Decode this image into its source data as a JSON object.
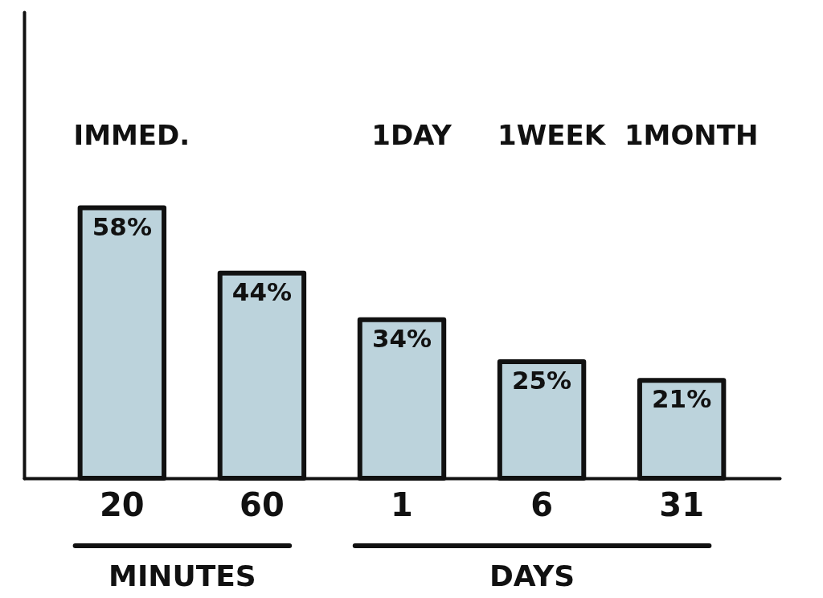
{
  "chart_data": {
    "type": "bar",
    "categories": [
      "20",
      "60",
      "1",
      "6",
      "31"
    ],
    "values": [
      58,
      44,
      34,
      25,
      21
    ],
    "value_labels": [
      "58%",
      "44%",
      "34%",
      "25%",
      "21%"
    ],
    "color": "#bcd3dc",
    "ylim": [
      0,
      100
    ],
    "tick_labels": "x",
    "annotations": [
      "IMMED.",
      "1DAY",
      "1WEEK",
      "1MONTH",
      "MINUTES",
      "DAYS"
    ]
  }
}
